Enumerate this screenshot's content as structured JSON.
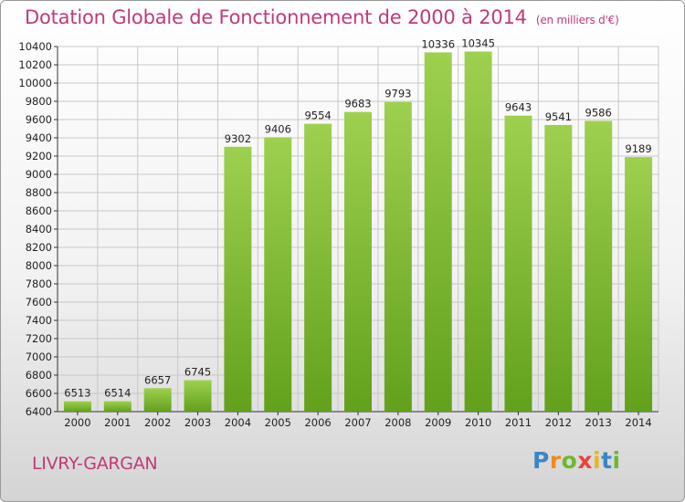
{
  "header": {
    "title": "Dotation Globale de Fonctionnement de 2000 à 2014",
    "unit": "(en milliers d'€)"
  },
  "footer": {
    "place": "LIVRY-GARGAN",
    "logo": "Proxiti",
    "logo_letters": [
      "P",
      "r",
      "o",
      "x",
      "i",
      "t",
      "i"
    ],
    "logo_colors": [
      "#3a86c8",
      "#f08a1c",
      "#6cb92d",
      "#e8433a",
      "#f0b41c",
      "#3a86c8",
      "#6cb92d"
    ]
  },
  "colors": {
    "title": "#c03a7a",
    "bar_top": "#9ed04f",
    "bar_bottom": "#62a11c",
    "grid": "#c8c8c8"
  },
  "chart_data": {
    "type": "bar",
    "title": "Dotation Globale de Fonctionnement de 2000 à 2014",
    "subtitle": "(en milliers d'€)",
    "categories": [
      "2000",
      "2001",
      "2002",
      "2003",
      "2004",
      "2005",
      "2006",
      "2007",
      "2008",
      "2009",
      "2010",
      "2011",
      "2012",
      "2013",
      "2014"
    ],
    "values": [
      6513,
      6514,
      6657,
      6745,
      9302,
      9406,
      9554,
      9683,
      9793,
      10336,
      10345,
      9643,
      9541,
      9586,
      9189
    ],
    "ylim": [
      6400,
      10400
    ],
    "ytick_step": 200,
    "yticks": [
      "6400",
      "6600",
      "6800",
      "7000",
      "7200",
      "7400",
      "7600",
      "7800",
      "8000",
      "8200",
      "8400",
      "8600",
      "8800",
      "9000",
      "9200",
      "9400",
      "9600",
      "9800",
      "10000",
      "10200",
      "10400"
    ],
    "xlabel": "",
    "ylabel": "",
    "grid": true
  }
}
